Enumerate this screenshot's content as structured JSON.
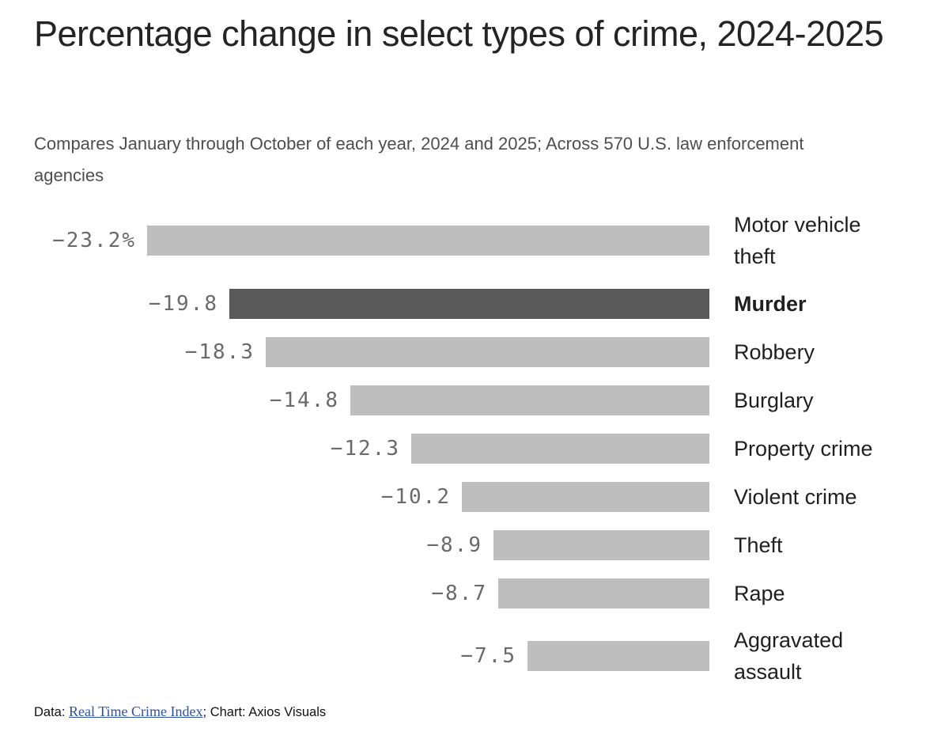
{
  "header": {
    "title": "Percentage change in select types of crime, 2024-2025",
    "subtitle": "Compares January through October of each year, 2024 and 2025; Across 570 U.S. law enforcement agencies"
  },
  "chart_data": {
    "type": "bar",
    "orientation": "horizontal",
    "categories": [
      "Motor vehicle theft",
      "Murder",
      "Robbery",
      "Burglary",
      "Property crime",
      "Violent crime",
      "Theft",
      "Rape",
      "Aggravated assault"
    ],
    "values": [
      -23.2,
      -19.8,
      -18.3,
      -14.8,
      -12.3,
      -10.2,
      -8.9,
      -8.7,
      -7.5
    ],
    "value_labels": [
      "−23.2%",
      "−19.8",
      "−18.3",
      "−14.8",
      "−12.3",
      "−10.2",
      "−8.9",
      "−8.7",
      "−7.5"
    ],
    "unit": "percent",
    "xlim": [
      -23.2,
      0
    ],
    "highlight_category": "Murder",
    "colors": {
      "bar": "#bebebe",
      "highlight": "#595959"
    },
    "value_label_position": "left-of-bar",
    "category_label_position": "right-of-bar",
    "grid": false,
    "legend": false
  },
  "footer": {
    "data_prefix": "Data: ",
    "source_link": "Real Time Crime Index",
    "suffix": "; Chart: Axios Visuals"
  }
}
